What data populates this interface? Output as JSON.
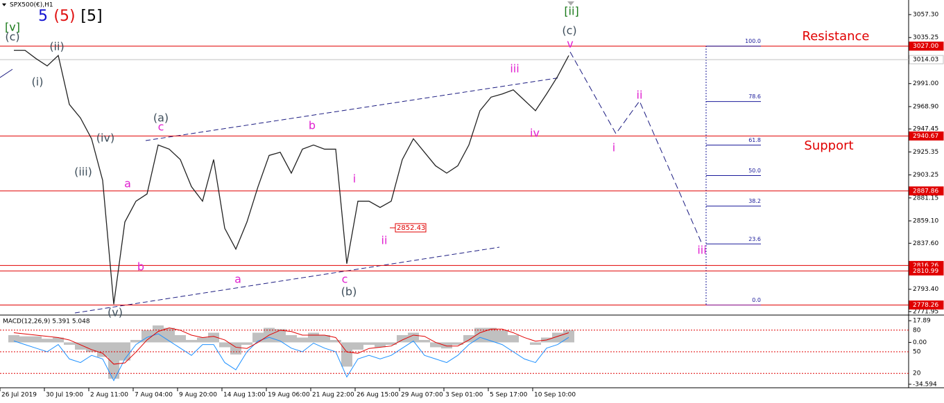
{
  "header": {
    "symbol": "SPX500(€),H1",
    "counts": [
      {
        "text": "5",
        "color": "#1010d0"
      },
      {
        "text": "(5)",
        "color": "#e01010"
      },
      {
        "text": "[5]",
        "color": "#000000"
      }
    ],
    "resistance": "Resistance",
    "support": "Support"
  },
  "chart_data": [
    {
      "type": "line",
      "color": "#222222",
      "categories": [
        "26 Jul 2019",
        null,
        null,
        null,
        "30 Jul 19:00",
        null,
        null,
        null,
        "2 Aug 11:00",
        null,
        null,
        null,
        "7 Aug 04:00",
        null,
        null,
        null,
        "9 Aug 20:00",
        null,
        null,
        null,
        "14 Aug 13:00",
        null,
        null,
        null,
        "19 Aug 06:00",
        null,
        null,
        null,
        "21 Aug 22:00",
        null,
        null,
        null,
        "26 Aug 15:00",
        null,
        null,
        null,
        "29 Aug 07:00",
        null,
        null,
        null,
        "3 Sep 01:00",
        null,
        null,
        null,
        "5 Sep 17:00",
        null,
        null,
        null,
        "10 Sep 10:00",
        null,
        null
      ],
      "values": [
        3023,
        3023,
        3015,
        3008,
        3018,
        2971,
        2958,
        2938,
        2898,
        2779,
        2858,
        2878,
        2885,
        2932,
        2928,
        2918,
        2892,
        2878,
        2918,
        2852,
        2832,
        2858,
        2892,
        2922,
        2925,
        2905,
        2928,
        2932,
        2928,
        2928,
        2818,
        2878,
        2878,
        2872,
        2878,
        2918,
        2938,
        2925,
        2912,
        2905,
        2912,
        2932,
        2965,
        2978,
        2981,
        2985,
        2975,
        2965,
        2981,
        2998,
        3018
      ],
      "ylim": [
        2768.6,
        3070
      ],
      "yticks": [
        {
          "value": 3057.3,
          "label": "3057.30"
        },
        {
          "value": 3035.25,
          "label": "3035.25"
        },
        {
          "value": 2991,
          "label": "2991.00"
        },
        {
          "value": 2968.9,
          "label": "2968.90"
        },
        {
          "value": 2947.45,
          "label": "2947.45"
        },
        {
          "value": 2925.35,
          "label": "2925.35"
        },
        {
          "value": 2903.25,
          "label": "2903.25"
        },
        {
          "value": 2881.15,
          "label": "2881.15"
        },
        {
          "value": 2859.1,
          "label": "2859.10"
        },
        {
          "value": 2837.6,
          "label": "2837.60"
        },
        {
          "value": 2793.4,
          "label": "2793.40"
        },
        {
          "value": 2771.95,
          "label": "2771.95"
        }
      ],
      "hlines": [
        {
          "value": 3027,
          "label": "3027.00",
          "color": "#e00000",
          "label_fill": "#e00000",
          "label_text": "#ffffff"
        },
        {
          "value": 3014.03,
          "label": "3014.03",
          "color": "#c0c0c0",
          "label_fill": "#ffffff",
          "label_text": "#000000"
        },
        {
          "value": 2940.67,
          "label": "2940.67",
          "color": "#e00000",
          "label_fill": "#e00000",
          "label_text": "#ffffff"
        },
        {
          "value": 2887.86,
          "label": "2887.86",
          "color": "#e00000",
          "label_fill": "#e00000",
          "label_text": "#ffffff"
        },
        {
          "value": 2816.26,
          "label": "2816.26",
          "color": "#e00000",
          "label_fill": "#e00000",
          "label_text": "#ffffff"
        },
        {
          "value": 2810.99,
          "label": "2810.99",
          "color": "#e00000",
          "label_fill": "#e00000",
          "label_text": "#ffffff"
        },
        {
          "value": 2778.26,
          "label": "2778.26",
          "color": "#e00000",
          "label_fill": "#e00000",
          "label_text": "#ffffff"
        }
      ],
      "fib": [
        {
          "value": 100,
          "label": "100.0"
        },
        78.6,
        61.8,
        {
          "value": 50,
          "label": "50.0"
        },
        38.2,
        23.6,
        {
          "value": 0,
          "label": "0.0"
        }
      ],
      "price_label": 2852.43,
      "annotations": [
        {
          "text": "[v]",
          "color": "#1a7a1a"
        },
        {
          "text": "(c)",
          "color": "#3d4d5a"
        },
        {
          "text": "(ii)",
          "color": "#3d4d5a"
        },
        {
          "text": "(i)",
          "color": "#3d4d5a"
        },
        {
          "text": "(iv)",
          "color": "#3d4d5a"
        },
        {
          "text": "(iii)",
          "color": "#3d4d5a"
        },
        {
          "text": "(v)",
          "color": "#3d4d5a"
        },
        {
          "text": "(a)",
          "color": "#3d4d5a"
        },
        {
          "text": "c",
          "color": "#e020d0"
        },
        {
          "text": "a",
          "color": "#e020d0"
        },
        {
          "text": "b",
          "color": "#e020d0"
        },
        {
          "text": "b",
          "color": "#e020d0"
        },
        {
          "text": "a",
          "color": "#e020d0"
        },
        {
          "text": "c",
          "color": "#e020d0"
        },
        {
          "text": "(b)",
          "color": "#3d4d5a"
        },
        {
          "text": "i",
          "color": "#e020d0"
        },
        {
          "text": "ii",
          "color": "#e020d0"
        },
        {
          "text": "iii",
          "color": "#e020d0"
        },
        {
          "text": "iv",
          "color": "#e020d0"
        },
        {
          "text": "v",
          "color": "#e020d0"
        },
        {
          "text": "(c)",
          "color": "#3d4d5a"
        },
        {
          "text": "[ii]",
          "color": "#1a7a1a"
        },
        {
          "text": "ii",
          "color": "#e020d0"
        },
        {
          "text": "i",
          "color": "#e020d0"
        },
        {
          "text": "iii",
          "color": "#e020d0"
        }
      ]
    },
    {
      "type": "macd",
      "title": "MACD(12,26,9) 5.391 5.048",
      "histogram": [
        6,
        5,
        5,
        3,
        4,
        -2,
        -6,
        -8,
        -12,
        -30,
        -15,
        2,
        10,
        14,
        12,
        6,
        2,
        4,
        8,
        -4,
        -10,
        -2,
        8,
        12,
        11,
        6,
        4,
        8,
        6,
        2,
        -20,
        -6,
        -2,
        -4,
        -2,
        6,
        8,
        2,
        -4,
        -5,
        -2,
        6,
        12,
        12,
        10,
        6,
        0,
        -2,
        4,
        8,
        10
      ],
      "signal": [
        8,
        7,
        6,
        5,
        4,
        2,
        -2,
        -6,
        -9,
        -18,
        -17,
        -8,
        2,
        9,
        12,
        10,
        6,
        4,
        5,
        2,
        -4,
        -5,
        0,
        6,
        10,
        9,
        6,
        6,
        6,
        4,
        -8,
        -9,
        -5,
        -4,
        -3,
        2,
        6,
        5,
        0,
        -3,
        -3,
        2,
        8,
        11,
        11,
        8,
        4,
        1,
        2,
        5,
        8
      ],
      "oscillator": [
        65,
        60,
        55,
        50,
        60,
        40,
        35,
        45,
        40,
        10,
        40,
        60,
        70,
        75,
        65,
        55,
        45,
        60,
        60,
        35,
        25,
        50,
        65,
        70,
        65,
        55,
        50,
        62,
        55,
        50,
        15,
        40,
        45,
        40,
        45,
        55,
        65,
        45,
        40,
        35,
        45,
        60,
        70,
        65,
        60,
        50,
        40,
        35,
        55,
        60,
        70
      ],
      "ylim": [
        -37.5,
        22
      ],
      "yticks": [
        {
          "value": 17.89,
          "label": "17.89"
        },
        {
          "value": 0,
          "label": "0.00"
        },
        {
          "value": -34.594,
          "label": "-34.594"
        }
      ],
      "y2lim": [
        0,
        100
      ],
      "y2ticks": [
        80,
        50,
        20
      ]
    }
  ]
}
